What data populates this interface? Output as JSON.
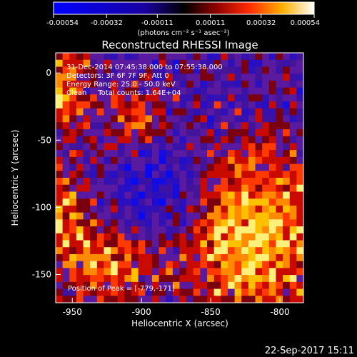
{
  "chart_data": {
    "type": "heatmap",
    "colorbar": {
      "ticks": [
        "-0.00054",
        "-0.00032",
        "-0.00011",
        "0.00011",
        "0.00032",
        "0.00054"
      ],
      "tick_values": [
        -0.00054,
        -0.00032,
        -0.00011,
        0.00011,
        0.00032,
        0.00054
      ],
      "range": [
        -0.00054,
        0.00054
      ],
      "unit_label": "(photons cm⁻² s⁻¹ asec⁻²)",
      "colors": [
        "#0000ff",
        "#000000",
        "#7a0000",
        "#ff2000",
        "#ffa000",
        "#ffffff"
      ]
    },
    "title": "Reconstructed RHESSI Image",
    "annotations": [
      "31-Dec-2014 07:45:38.000 to 07:55:38.000",
      "Detectors: 3F 6F 7F 9F, Att 0",
      "Energy Range: 25.0 - 50.0 keV",
      "Clean     Total counts: 1.64E+04"
    ],
    "peak_label": "Position of Peak = [-779,-171]",
    "xlabel": "Heliocentric X (arcsec)",
    "ylabel": "Heliocentric Y (arcsec)",
    "x_ticks": [
      "-950",
      "-900",
      "-850",
      "-800"
    ],
    "x_tick_values": [
      -950,
      -900,
      -850,
      -800
    ],
    "y_ticks": [
      "0",
      "-50",
      "-100",
      "-150"
    ],
    "y_tick_values": [
      0,
      -50,
      -100,
      -150
    ],
    "xlim": [
      -962,
      -783
    ],
    "ylim": [
      -171,
      15
    ],
    "grid": false,
    "background": "#5a1aa0",
    "grid_cols": 36,
    "grid_rows": 36
  },
  "footer": {
    "timestamp": "22-Sep-2017 15:11"
  }
}
